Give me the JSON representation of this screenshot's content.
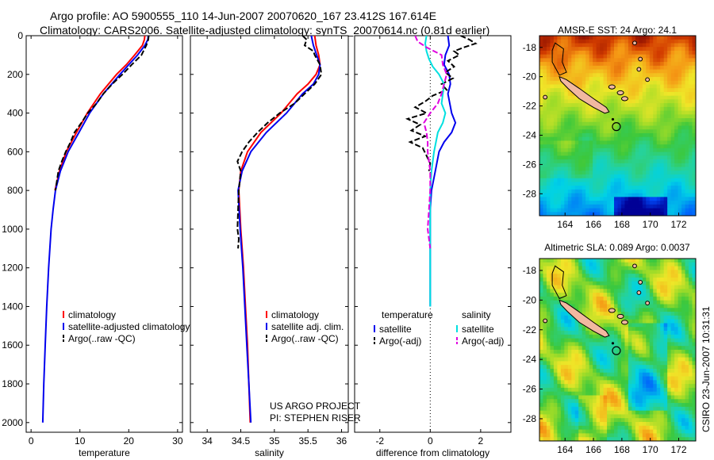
{
  "header": {
    "line1": "Argo profile: AO 5900555_110 14-Jun-2007 20070620_167 23.412S 167.614E",
    "line2": "Climatology: CARS2006. Satellite-adjusted climatology: synTS_20070614.nc (0.81d earlier)"
  },
  "footer": {
    "project": "US ARGO PROJECT",
    "pi": "PI: STEPHEN RISER",
    "stamp": "CSIRO 23-Jun-2007 10:31:31"
  },
  "colors": {
    "climatology": "#ff0000",
    "satellite": "#0000ee",
    "argo": "#000000",
    "satellite_salinity": "#00e0e0",
    "argo_adj_salinity": "#e000e0"
  },
  "chart_data": [
    {
      "id": "temperature",
      "type": "line",
      "xlabel": "temperature",
      "ylabel": "",
      "xlim": [
        -1,
        31
      ],
      "ylim": [
        2050,
        0
      ],
      "xticks": [
        0,
        10,
        20,
        30
      ],
      "yticks": [
        0,
        200,
        400,
        600,
        800,
        1000,
        1200,
        1400,
        1600,
        1800,
        2000
      ],
      "legend": {
        "position": "lower-right",
        "entries": [
          "climatology",
          "satellite-adjusted climatology",
          "Argo(..raw -QC)"
        ]
      },
      "series": [
        {
          "name": "climatology",
          "color": "#ff0000",
          "depth": [
            0,
            20,
            50,
            100,
            150,
            200,
            300,
            400,
            500,
            600,
            700,
            800
          ],
          "values": [
            23.3,
            23.2,
            22.8,
            21.2,
            19.5,
            17.5,
            14.2,
            11.5,
            9.3,
            7.2,
            5.8,
            4.9
          ]
        },
        {
          "name": "satellite-adjusted climatology",
          "color": "#0000ee",
          "depth": [
            0,
            20,
            50,
            100,
            150,
            200,
            300,
            400,
            500,
            600,
            700,
            800,
            900,
            1000,
            1200,
            1400,
            1600,
            1800,
            2000
          ],
          "values": [
            24.0,
            23.9,
            23.3,
            21.8,
            20.0,
            18.2,
            14.8,
            12.0,
            9.8,
            7.6,
            6.0,
            5.0,
            4.5,
            4.1,
            3.6,
            3.2,
            2.9,
            2.6,
            2.4
          ]
        },
        {
          "name": "Argo(..raw -QC)",
          "color": "#000000",
          "depth": [
            0,
            20,
            50,
            100,
            150,
            200,
            250,
            300,
            350,
            400,
            450,
            500,
            550,
            600,
            650,
            700,
            800
          ],
          "values": [
            24.1,
            24.0,
            23.6,
            22.6,
            20.6,
            18.7,
            16.6,
            14.8,
            13.4,
            11.6,
            10.3,
            8.9,
            8.1,
            7.1,
            6.3,
            5.6,
            5.0
          ]
        }
      ]
    },
    {
      "id": "salinity",
      "type": "line",
      "xlabel": "salinity",
      "ylabel": "",
      "xlim": [
        33.75,
        36.1
      ],
      "ylim": [
        2050,
        0
      ],
      "xticks": [
        34,
        34.5,
        35,
        35.5,
        36
      ],
      "legend": {
        "position": "lower-right",
        "entries": [
          "climatology",
          "satellite adj. clim.",
          "Argo(..raw -QC)"
        ]
      },
      "series": [
        {
          "name": "climatology",
          "color": "#ff0000",
          "depth": [
            0,
            50,
            100,
            150,
            200,
            250,
            300,
            400,
            500,
            600,
            700,
            800,
            1000,
            1200,
            1400,
            1600,
            1800,
            2000
          ],
          "values": [
            35.6,
            35.62,
            35.66,
            35.68,
            35.62,
            35.5,
            35.34,
            35.1,
            34.8,
            34.6,
            34.5,
            34.47,
            34.5,
            34.54,
            34.57,
            34.6,
            34.62,
            34.64
          ]
        },
        {
          "name": "satellite adj. clim.",
          "color": "#0000ee",
          "depth": [
            0,
            50,
            100,
            150,
            200,
            250,
            300,
            400,
            500,
            600,
            700,
            800,
            1000,
            1200,
            1400,
            1600,
            1800,
            2000
          ],
          "values": [
            35.55,
            35.58,
            35.63,
            35.68,
            35.66,
            35.58,
            35.42,
            35.18,
            34.88,
            34.65,
            34.52,
            34.46,
            34.49,
            34.53,
            34.56,
            34.59,
            34.62,
            34.65
          ]
        },
        {
          "name": "Argo(..raw -QC)",
          "color": "#000000",
          "depth": [
            0,
            20,
            50,
            80,
            100,
            150,
            200,
            250,
            300,
            350,
            400,
            450,
            500,
            550,
            600,
            650,
            700,
            800,
            900,
            1000,
            1050,
            1100
          ],
          "values": [
            35.42,
            35.48,
            35.45,
            35.58,
            35.6,
            35.68,
            35.7,
            35.6,
            35.45,
            35.3,
            35.08,
            34.9,
            34.75,
            34.62,
            34.52,
            34.45,
            34.5,
            34.47,
            34.46,
            34.45,
            34.47,
            34.46
          ]
        }
      ]
    },
    {
      "id": "difference",
      "type": "line",
      "xlabel": "difference from climatology",
      "ylabel": "",
      "xlim": [
        -3,
        3.2
      ],
      "ylim": [
        2050,
        0
      ],
      "xticks": [
        -2,
        0,
        2
      ],
      "zero_line": 0,
      "legend": {
        "position": "lower-center",
        "headers": [
          "temperature",
          "salinity"
        ],
        "entries": [
          "satellite",
          "Argo(-adj)",
          "satellite",
          "Argo(-adj)"
        ]
      },
      "series": [
        {
          "name": "temperature satellite",
          "color": "#0000ee",
          "depth": [
            0,
            50,
            100,
            150,
            200,
            250,
            300,
            400,
            450,
            500,
            550,
            600,
            700,
            800,
            900,
            1000,
            1100,
            1200,
            1300,
            1400
          ],
          "values": [
            0.7,
            0.75,
            0.6,
            0.55,
            0.75,
            0.8,
            0.7,
            0.85,
            1.0,
            0.85,
            0.55,
            0.35,
            0.2,
            0.05,
            0.0,
            0.0,
            0.0,
            0.0,
            0.0,
            0.0
          ]
        },
        {
          "name": "temperature Argo(-adj)",
          "color": "#000000",
          "depth": [
            0,
            20,
            40,
            60,
            80,
            100,
            130,
            160,
            190,
            220,
            250,
            280,
            310,
            340,
            370,
            400,
            430,
            460,
            490,
            520,
            550,
            580,
            620,
            660,
            700
          ],
          "values": [
            1.2,
            1.55,
            1.8,
            1.35,
            0.95,
            1.15,
            0.7,
            0.95,
            0.6,
            0.9,
            0.45,
            0.65,
            0.1,
            -0.2,
            -0.6,
            -0.15,
            -0.9,
            -0.4,
            -0.75,
            -0.2,
            -0.8,
            -0.3,
            -0.15,
            0.0,
            -0.05
          ]
        },
        {
          "name": "salinity satellite",
          "color": "#00e0e0",
          "depth": [
            0,
            40,
            80,
            120,
            160,
            200,
            250,
            300,
            350,
            400,
            450,
            500,
            600,
            700,
            800,
            1000,
            1200,
            1400
          ],
          "values": [
            -0.15,
            -0.2,
            -0.15,
            -0.05,
            0.1,
            0.35,
            0.55,
            0.5,
            0.45,
            0.6,
            0.5,
            0.3,
            0.15,
            0.05,
            0.0,
            0.0,
            0.0,
            0.0
          ]
        },
        {
          "name": "salinity Argo(-adj)",
          "color": "#e000e0",
          "depth": [
            0,
            30,
            60,
            100,
            150,
            200,
            250,
            300,
            350,
            400,
            450,
            500,
            550,
            600,
            650,
            700,
            800,
            900,
            1000,
            1050,
            1100
          ],
          "values": [
            -0.6,
            -0.5,
            -0.15,
            0.45,
            0.5,
            0.65,
            0.55,
            0.45,
            0.3,
            0.0,
            -0.25,
            -0.15,
            -0.1,
            -0.1,
            -0.05,
            0.0,
            0.0,
            -0.05,
            -0.1,
            -0.05,
            0.0
          ]
        }
      ]
    },
    {
      "id": "sst_map",
      "type": "heatmap",
      "title": "AMSR-E SST: 24 Argo: 24.1",
      "xlim": [
        162.2,
        173.2
      ],
      "ylim": [
        -29.5,
        -17.2
      ],
      "xticks": [
        164,
        166,
        168,
        170,
        172
      ],
      "yticks": [
        -18,
        -20,
        -22,
        -24,
        -26,
        -28
      ],
      "profile_location": [
        167.614,
        -23.412
      ],
      "values": [
        24,
        24.1
      ]
    },
    {
      "id": "sla_map",
      "type": "heatmap",
      "title": "Altimetric SLA: 0.089 Argo: 0.0037",
      "xlim": [
        162.2,
        173.2
      ],
      "ylim": [
        -29.5,
        -17.2
      ],
      "xticks": [
        164,
        166,
        168,
        170,
        172
      ],
      "yticks": [
        -18,
        -20,
        -22,
        -24,
        -26,
        -28
      ],
      "profile_location": [
        167.614,
        -23.412
      ],
      "values": [
        0.089,
        0.0037
      ]
    }
  ]
}
